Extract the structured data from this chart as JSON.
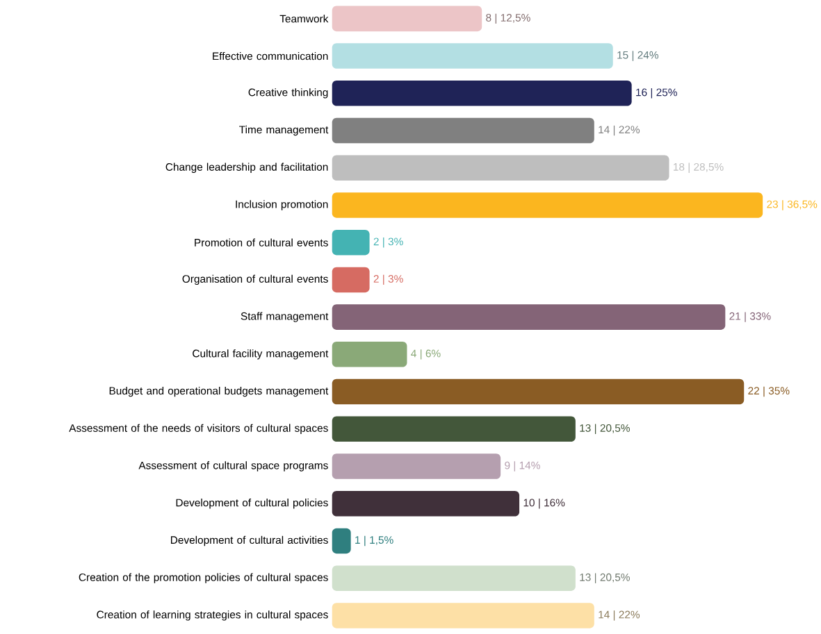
{
  "chart_data": {
    "type": "bar",
    "orientation": "horizontal",
    "categories": [
      "Teamwork",
      "Effective communication",
      "Creative thinking",
      "Time management",
      "Change leadership and facilitation",
      "Inclusion promotion",
      "Promotion of cultural events",
      "Organisation of cultural events",
      "Staff management",
      "Cultural facility management",
      "Budget and operational budgets management",
      "Assessment of the needs of visitors of cultural spaces",
      "Assessment of cultural space programs",
      "Development of cultural policies",
      "Development of cultural activities",
      "Creation of the promotion policies of cultural spaces",
      "Creation of learning strategies in cultural spaces"
    ],
    "values": [
      8,
      15,
      16,
      14,
      18,
      23,
      2,
      2,
      21,
      4,
      22,
      13,
      9,
      10,
      1,
      13,
      14
    ],
    "value_labels": [
      "8 | 12,5%",
      "15 | 24%",
      "16 | 25%",
      "14 | 22%",
      "18 | 28,5%",
      "23 | 36,5%",
      "2 | 3%",
      "2 | 3%",
      "21 | 33%",
      "4 | 6%",
      "22 | 35%",
      "13 | 20,5%",
      "9 | 14%",
      "10 | 16%",
      "1 | 1,5%",
      "13 | 20,5%",
      "14 | 22%"
    ],
    "colors": [
      "#ecc5c7",
      "#b3dfe3",
      "#1f2357",
      "#808080",
      "#bebebe",
      "#fbb61f",
      "#44b3b3",
      "#d66b62",
      "#846477",
      "#8aa978",
      "#8a5c24",
      "#43573a",
      "#b59faf",
      "#40303a",
      "#2f7f7f",
      "#d0e0cc",
      "#fde0a6"
    ]
  }
}
